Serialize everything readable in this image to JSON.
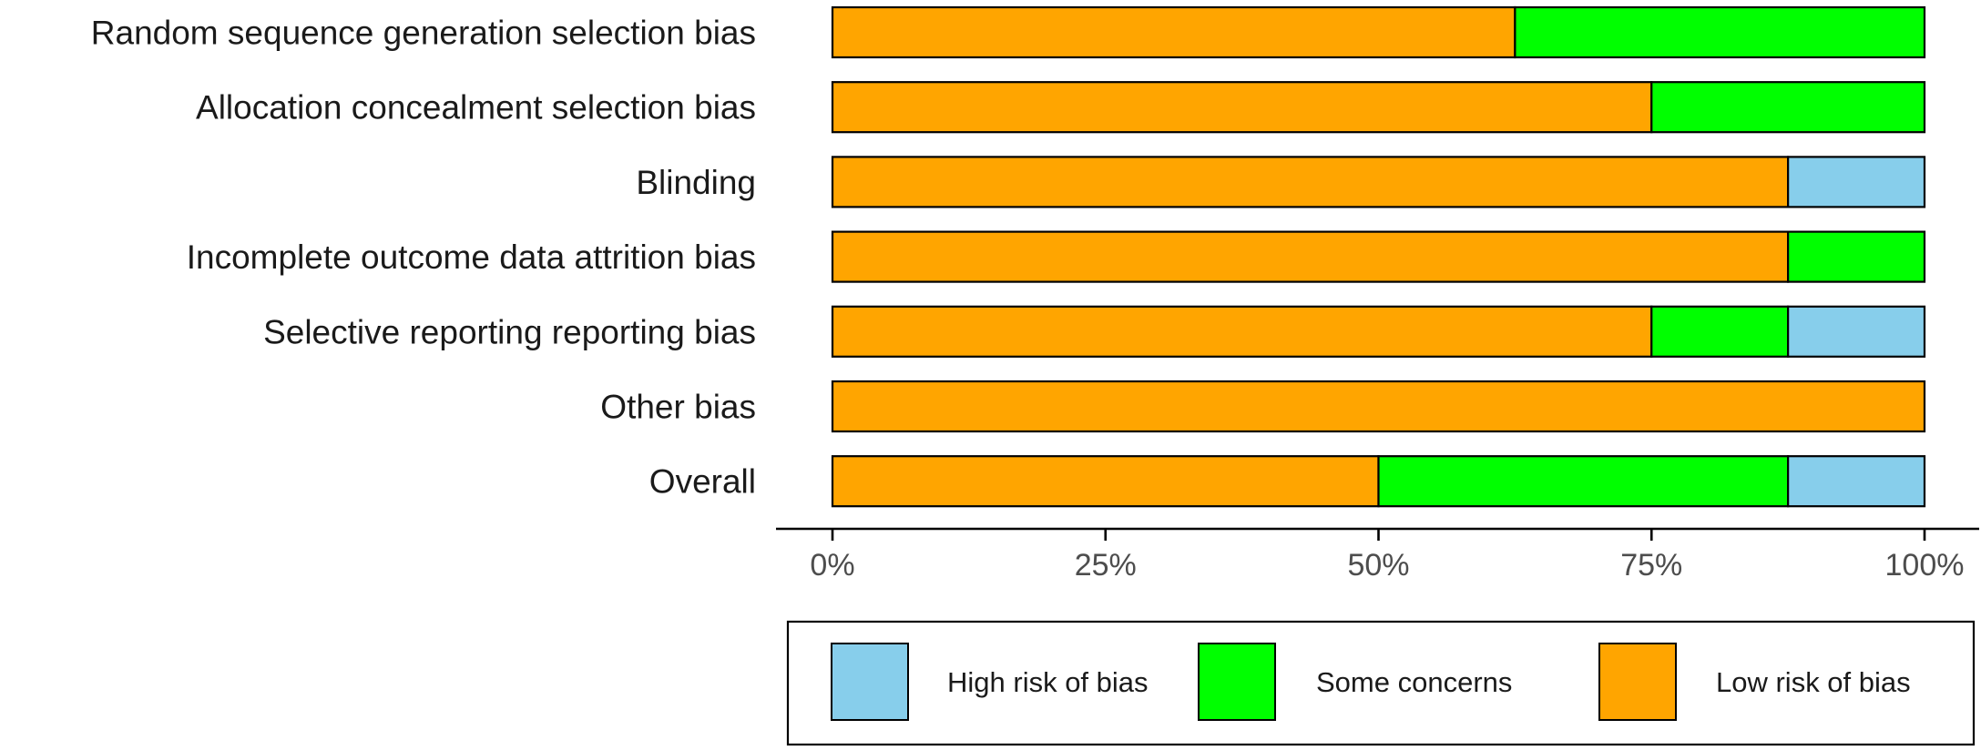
{
  "chart_data": {
    "type": "bar",
    "orientation": "horizontal",
    "stacked": true,
    "categories": [
      "Random sequence generation  selection bias",
      "Allocation concealment  selection bias",
      "Blinding",
      "Incomplete outcome data  attrition bias",
      "Selective reporting  reporting bias",
      "Other bias",
      "Overall"
    ],
    "series": [
      {
        "name": "Low risk of bias",
        "color": "#FFA500",
        "values": [
          62.5,
          75,
          87.5,
          87.5,
          75,
          100,
          50
        ]
      },
      {
        "name": "Some concerns",
        "color": "#00FF00",
        "values": [
          37.5,
          25,
          0,
          12.5,
          12.5,
          0,
          37.5
        ]
      },
      {
        "name": "High risk of bias",
        "color": "#87CEEB",
        "values": [
          0,
          0,
          12.5,
          0,
          12.5,
          0,
          12.5
        ]
      }
    ],
    "x_ticks": [
      "0%",
      "25%",
      "50%",
      "75%",
      "100%"
    ],
    "xlim": [
      0,
      100
    ],
    "unit": "%",
    "grid": false,
    "legend": {
      "position": "bottom",
      "order": [
        "High risk of bias",
        "Some concerns",
        "Low risk of bias"
      ]
    }
  }
}
